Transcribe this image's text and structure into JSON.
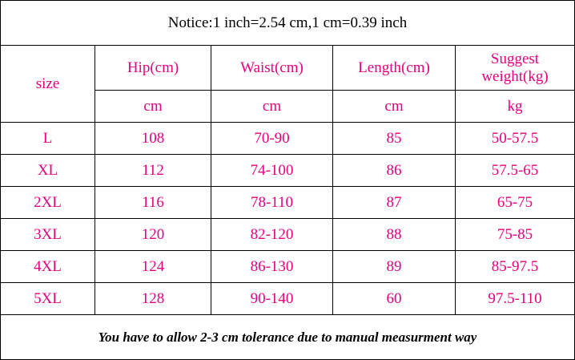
{
  "notice": "Notice:1 inch=2.54 cm,1 cm=0.39 inch",
  "header": {
    "size": "size",
    "columns": [
      {
        "name": "Hip(cm)",
        "unit": "cm"
      },
      {
        "name": "Waist(cm)",
        "unit": "cm"
      },
      {
        "name": "Length(cm)",
        "unit": "cm"
      },
      {
        "name": "Suggest weight(kg)",
        "unit": "kg"
      }
    ]
  },
  "rows": [
    [
      "L",
      "108",
      "70-90",
      "85",
      "50-57.5"
    ],
    [
      "XL",
      "112",
      "74-100",
      "86",
      "57.5-65"
    ],
    [
      "2XL",
      "116",
      "78-110",
      "87",
      "65-75"
    ],
    [
      "3XL",
      "120",
      "82-120",
      "88",
      "75-85"
    ],
    [
      "4XL",
      "124",
      "86-130",
      "89",
      "85-97.5"
    ],
    [
      "5XL",
      "128",
      "90-140",
      "60",
      "97.5-110"
    ]
  ],
  "footer": "You have to allow 2-3 cm tolerance due to manual measurment way"
}
